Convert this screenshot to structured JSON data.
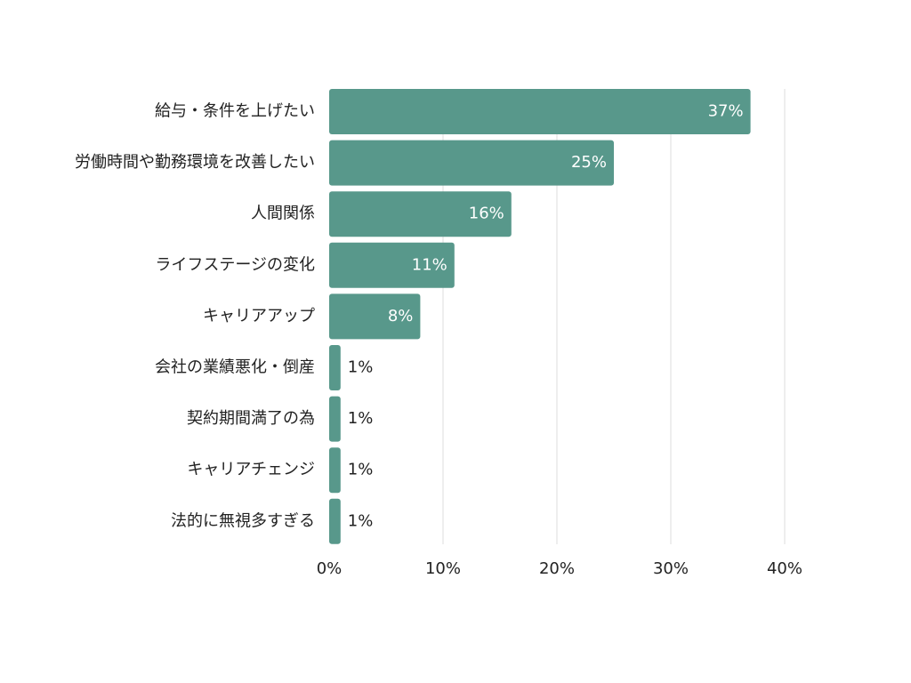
{
  "colors": {
    "bar": "#58988b",
    "grid": "#dddddd",
    "text": "#222222",
    "label_inside": "#ffffff"
  },
  "chart_data": {
    "type": "bar",
    "orientation": "horizontal",
    "categories": [
      "給与・条件を上げたい",
      "労働時間や勤務環境を改善したい",
      "人間関係",
      "ライフステージの変化",
      "キャリアアップ",
      "会社の業績悪化・倒産",
      "契約期間満了の為",
      "キャリアチェンジ",
      "法的に無視多すぎる"
    ],
    "values": [
      37,
      25,
      16,
      11,
      8,
      1,
      1,
      1,
      1
    ],
    "value_labels": [
      "37%",
      "25%",
      "16%",
      "11%",
      "8%",
      "1%",
      "1%",
      "1%",
      "1%"
    ],
    "xticks": [
      0,
      10,
      20,
      30,
      40
    ],
    "xtick_labels": [
      "0%",
      "10%",
      "20%",
      "30%",
      "40%"
    ],
    "xlim": [
      0,
      40
    ],
    "grid": true,
    "legend": "none"
  }
}
